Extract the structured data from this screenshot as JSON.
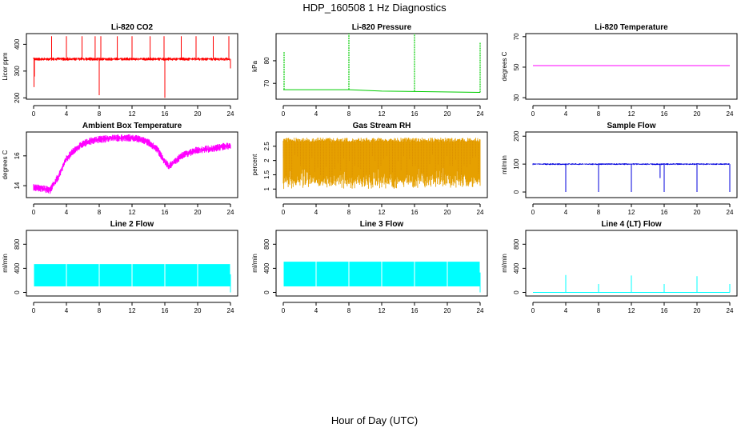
{
  "figure": {
    "title": "HDP_160508  1 Hz Diagnostics",
    "xlabel": "Hour of Day (UTC)"
  },
  "chart_data": [
    {
      "type": "line",
      "title": "Li-820 CO2",
      "ylabel": "Licor ppm",
      "color": "#ff0000",
      "xlim": [
        0,
        24
      ],
      "ylim": [
        195,
        440
      ],
      "yticks": [
        200,
        300,
        400
      ],
      "xticks": [
        0,
        4,
        8,
        12,
        16,
        20,
        24
      ],
      "baseline": 345,
      "noise": 6,
      "spikes_up": [
        [
          0.1,
          280
        ],
        [
          2.2,
          430
        ],
        [
          4.0,
          430
        ],
        [
          5.9,
          430
        ],
        [
          7.5,
          430
        ],
        [
          8.2,
          430
        ],
        [
          10.2,
          430
        ],
        [
          12.0,
          430
        ],
        [
          14.2,
          430
        ],
        [
          15.9,
          430
        ],
        [
          18.0,
          430
        ],
        [
          19.8,
          430
        ],
        [
          21.9,
          430
        ],
        [
          23.8,
          430
        ]
      ],
      "spikes_down": [
        [
          0.05,
          240
        ],
        [
          8.0,
          210
        ],
        [
          16.0,
          200
        ],
        [
          24.0,
          310
        ]
      ]
    },
    {
      "type": "line",
      "title": "Li-820 Pressure",
      "ylabel": "kPa",
      "color": "#00cc00",
      "xlim": [
        0,
        24
      ],
      "ylim": [
        63,
        92
      ],
      "yticks": [
        70,
        80
      ],
      "xticks": [
        0,
        4,
        8,
        12,
        16,
        20,
        24
      ],
      "segments": [
        [
          0,
          67.2
        ],
        [
          8,
          67.2
        ],
        [
          12,
          66.6
        ],
        [
          16,
          66.4
        ],
        [
          24,
          66.0
        ]
      ],
      "spikes_up": [
        [
          0.1,
          84
        ],
        [
          8.0,
          92
        ],
        [
          16.0,
          92
        ],
        [
          24.0,
          88
        ]
      ]
    },
    {
      "type": "line",
      "title": "Li-820 Temperature",
      "ylabel": "degrees C",
      "color": "#ff00ff",
      "xlim": [
        0,
        24
      ],
      "ylim": [
        29,
        72
      ],
      "yticks": [
        30,
        50,
        70
      ],
      "xticks": [
        0,
        4,
        8,
        12,
        16,
        20,
        24
      ],
      "segments": [
        [
          0,
          51
        ],
        [
          24,
          51
        ]
      ]
    },
    {
      "type": "line",
      "title": "Ambient Box Temperature",
      "ylabel": "degrees C",
      "color": "#ff00ff",
      "xlim": [
        0,
        24
      ],
      "ylim": [
        13.2,
        17.6
      ],
      "yticks": [
        14,
        16
      ],
      "xticks": [
        0,
        4,
        8,
        12,
        16,
        20,
        24
      ],
      "noise": 0.25,
      "curve": [
        [
          0,
          13.9
        ],
        [
          1,
          13.8
        ],
        [
          2,
          13.7
        ],
        [
          3,
          14.6
        ],
        [
          4,
          15.8
        ],
        [
          5,
          16.4
        ],
        [
          6,
          16.8
        ],
        [
          7,
          17.0
        ],
        [
          8,
          17.1
        ],
        [
          10,
          17.2
        ],
        [
          12,
          17.2
        ],
        [
          13,
          17.1
        ],
        [
          14,
          16.9
        ],
        [
          15,
          16.5
        ],
        [
          16,
          15.6
        ],
        [
          16.5,
          15.3
        ],
        [
          17,
          15.5
        ],
        [
          18,
          16.0
        ],
        [
          20,
          16.4
        ],
        [
          22,
          16.5
        ],
        [
          24,
          16.7
        ]
      ]
    },
    {
      "type": "line",
      "title": "Gas Stream RH",
      "ylabel": "percent",
      "color": "#e6a000",
      "xlim": [
        0,
        24
      ],
      "ylim": [
        0.7,
        3.0
      ],
      "yticks": [
        1.0,
        1.5,
        2.0,
        2.5
      ],
      "xticks": [
        0,
        4,
        8,
        12,
        16,
        20,
        24
      ],
      "band": [
        1.0,
        2.8
      ]
    },
    {
      "type": "line",
      "title": "Sample Flow",
      "ylabel": "ml/min",
      "color": "#0000dd",
      "xlim": [
        0,
        24
      ],
      "ylim": [
        -20,
        215
      ],
      "yticks": [
        0,
        100,
        200
      ],
      "xticks": [
        0,
        4,
        8,
        12,
        16,
        20,
        24
      ],
      "baseline": 100,
      "noise": 3,
      "spikes_down": [
        [
          4.0,
          0
        ],
        [
          8.0,
          0
        ],
        [
          12.0,
          0
        ],
        [
          15.5,
          50
        ],
        [
          16.0,
          0
        ],
        [
          20.0,
          0
        ],
        [
          24.0,
          0
        ]
      ]
    },
    {
      "type": "line",
      "title": "Line 2 Flow",
      "ylabel": "ml/min",
      "color": "#00ffff",
      "xlim": [
        0,
        24
      ],
      "ylim": [
        -60,
        1030
      ],
      "yticks": [
        0,
        400,
        800
      ],
      "xticks": [
        0,
        4,
        8,
        12,
        16,
        20,
        24
      ],
      "band": [
        100,
        470
      ],
      "gaps": [
        4,
        8,
        12,
        16,
        20
      ],
      "tail": [
        24,
        300
      ]
    },
    {
      "type": "line",
      "title": "Line 3 Flow",
      "ylabel": "ml/min",
      "color": "#00ffff",
      "xlim": [
        0,
        24
      ],
      "ylim": [
        -60,
        1030
      ],
      "yticks": [
        0,
        400,
        800
      ],
      "xticks": [
        0,
        4,
        8,
        12,
        16,
        20,
        24
      ],
      "band": [
        100,
        510
      ],
      "gaps": [
        4,
        8,
        12,
        16,
        20
      ],
      "tail": [
        24,
        330
      ]
    },
    {
      "type": "line",
      "title": "Line 4 (LT) Flow",
      "ylabel": "ml/min",
      "color": "#00ffff",
      "xlim": [
        0,
        24
      ],
      "ylim": [
        -60,
        1030
      ],
      "yticks": [
        0,
        400,
        800
      ],
      "xticks": [
        0,
        4,
        8,
        12,
        16,
        20,
        24
      ],
      "baseline": 0,
      "spikes_up": [
        [
          4.0,
          290
        ],
        [
          8.0,
          140
        ],
        [
          12.0,
          280
        ],
        [
          16.0,
          140
        ],
        [
          20.0,
          270
        ],
        [
          24.0,
          140
        ]
      ]
    }
  ]
}
